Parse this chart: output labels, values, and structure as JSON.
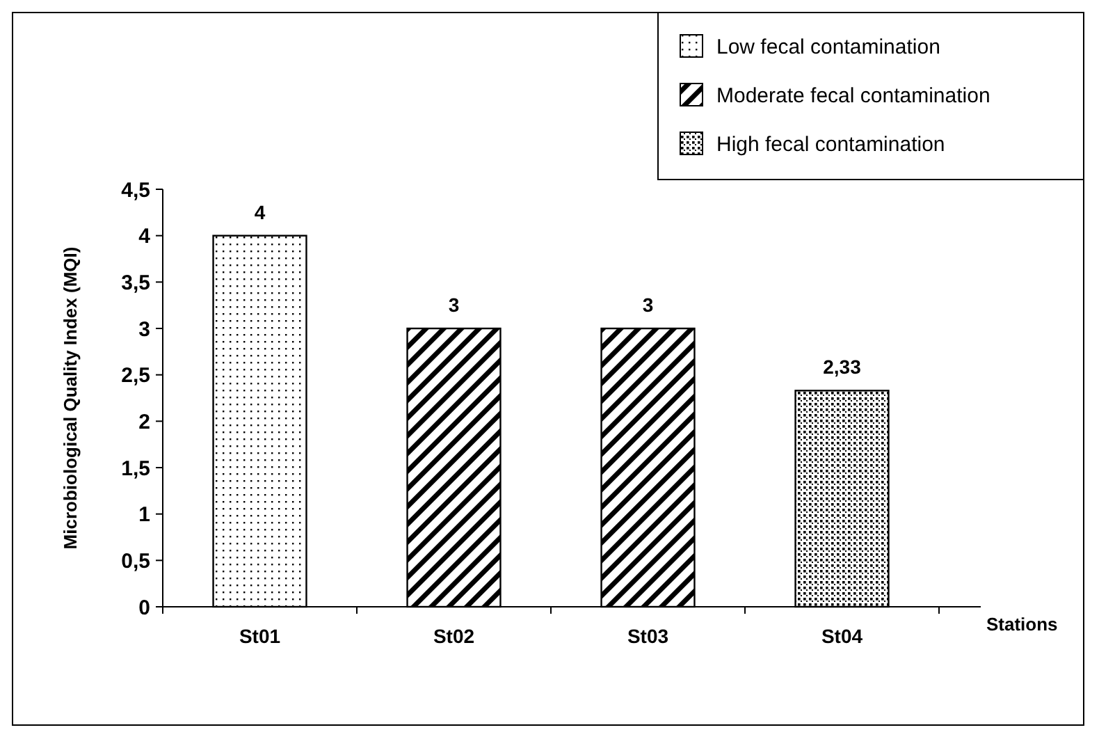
{
  "chart_data": {
    "type": "bar",
    "xlabel": "Stations",
    "ylabel": "Microbiological Quality Index (MQI)",
    "categories": [
      "St01",
      "St02",
      "St03",
      "St04"
    ],
    "series": [
      {
        "name": "Low fecal contamination",
        "color": "#000000",
        "values": [
          4,
          null,
          null,
          null
        ],
        "value_labels": [
          "4",
          null,
          null,
          null
        ]
      },
      {
        "name": "Moderate fecal contamination",
        "color": "#000000",
        "values": [
          null,
          3,
          3,
          null
        ],
        "value_labels": [
          null,
          "3",
          "3",
          null
        ]
      },
      {
        "name": "High fecal contamination",
        "color": "#000000",
        "values": [
          null,
          null,
          null,
          2.33
        ],
        "value_labels": [
          null,
          null,
          null,
          "2,33"
        ]
      }
    ],
    "ylim": [
      0,
      4.5
    ],
    "yticks": [
      0,
      {
        "value": 0.5,
        "label": "0,5"
      },
      1,
      {
        "value": 1.5,
        "label": "1,5"
      },
      2,
      {
        "value": 2.5,
        "label": "2,5"
      },
      3,
      {
        "value": 3.5,
        "label": "3,5"
      },
      4,
      {
        "value": 4.5,
        "label": "4,5"
      }
    ],
    "grid": false,
    "legend": "top right"
  }
}
